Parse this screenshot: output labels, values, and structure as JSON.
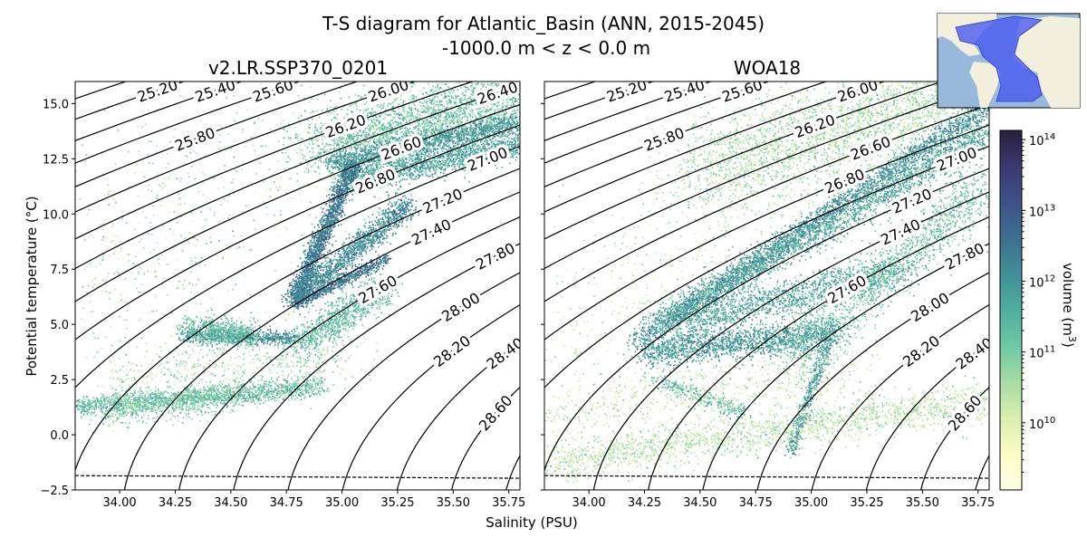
{
  "chart_data": {
    "type": "heatmap",
    "title": "T-S diagram for Atlantic_Basin (ANN, 2015-2045)",
    "subtitle": "-1000.0 m < z < 0.0 m",
    "xlabel": "Salinity (PSU)",
    "ylabel": "Potential temperature (°C)",
    "xlim": [
      33.8,
      35.8
    ],
    "ylim": [
      -2.5,
      16.0
    ],
    "xticks": [
      "34.00",
      "34.25",
      "34.50",
      "34.75",
      "35.00",
      "35.25",
      "35.50",
      "35.75"
    ],
    "xtick_values": [
      34.0,
      34.25,
      34.5,
      34.75,
      35.0,
      35.25,
      35.5,
      35.75
    ],
    "yticks": [
      "−2.5",
      "0.0",
      "2.5",
      "5.0",
      "7.5",
      "10.0",
      "12.5",
      "15.0"
    ],
    "ytick_values": [
      -2.5,
      0,
      2.5,
      5,
      7.5,
      10,
      12.5,
      15
    ],
    "panels": [
      {
        "title": "v2.LR.SSP370_0201"
      },
      {
        "title": "WOA18"
      }
    ],
    "density_contours": {
      "levels_labeled": [
        "25.20",
        "25.40",
        "25.60",
        "25.80",
        "26.00",
        "26.20",
        "26.40",
        "26.60",
        "26.80",
        "27.00",
        "27.20",
        "27.40",
        "27.60",
        "27.80",
        "28.00",
        "28.20",
        "28.40",
        "28.60"
      ],
      "label_positions_T": [
        15.6,
        15.6,
        15.6,
        13.4,
        15.6,
        14.0,
        15.5,
        13.0,
        11.5,
        12.5,
        10.6,
        9.2,
        6.6,
        8.1,
        5.8,
        3.8,
        3.7,
        1.0
      ]
    },
    "freezing_line": {
      "style": "dashed",
      "T_at_xmin": -1.85,
      "T_at_xmax": -1.97
    },
    "colorbar": {
      "label": "volume (m",
      "label_sup": "3",
      "label_end": ")",
      "scale": "log",
      "range_log10": [
        9.05,
        14.13
      ],
      "ticks": [
        {
          "base": "10",
          "exp": "10",
          "v": 10
        },
        {
          "base": "10",
          "exp": "11",
          "v": 11
        },
        {
          "base": "10",
          "exp": "12",
          "v": 12
        },
        {
          "base": "10",
          "exp": "13",
          "v": 13
        },
        {
          "base": "10",
          "exp": "14",
          "v": 14
        }
      ],
      "colormap": [
        "#fffee5",
        "#fbfbc6",
        "#d9efb0",
        "#a6dba4",
        "#6ecaa4",
        "#4fae9f",
        "#3f8f98",
        "#3c708f",
        "#3d5189",
        "#3b3971",
        "#2a1f3d"
      ]
    },
    "inset_map": {
      "ocean": "#98b8dc",
      "land": "#f2efdc",
      "basin": "#4a5af0"
    }
  }
}
